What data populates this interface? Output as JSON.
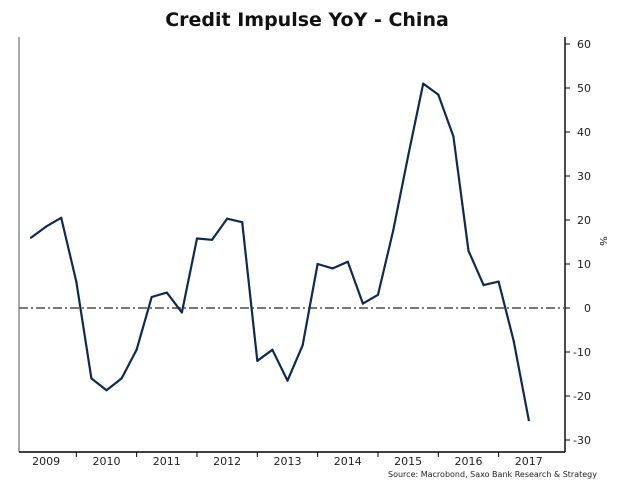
{
  "chart_data": {
    "type": "line",
    "title": "Credit Impulse YoY - China",
    "ylabel": "%",
    "source": "Source: Macrobond, Saxo Bank Research & Strategy",
    "ylim": [
      -30,
      60
    ],
    "yticks": [
      60,
      50,
      40,
      30,
      20,
      10,
      0,
      -10,
      -20,
      -30
    ],
    "xlim": [
      2008.55,
      2017.6
    ],
    "xtick_labels": [
      {
        "label": "2009",
        "x": 2009.0
      },
      {
        "label": "2010",
        "x": 2010.0
      },
      {
        "label": "2011",
        "x": 2011.0
      },
      {
        "label": "2012",
        "x": 2012.0
      },
      {
        "label": "2013",
        "x": 2013.0
      },
      {
        "label": "2014",
        "x": 2014.0
      },
      {
        "label": "2015",
        "x": 2015.0
      },
      {
        "label": "2016",
        "x": 2016.0
      },
      {
        "label": "2017",
        "x": 2017.0
      }
    ],
    "x_boundaries": [
      2009.5,
      2010.5,
      2011.5,
      2012.5,
      2013.5,
      2014.5,
      2015.5,
      2016.5
    ],
    "grid": false,
    "legend": "none",
    "zero_line": {
      "value": 0,
      "style": "dash-dot",
      "color": "#666666"
    },
    "series": [
      {
        "color": "#0f2a4e",
        "x": [
          2008.75,
          2009.0,
          2009.25,
          2009.5,
          2009.75,
          2010.0,
          2010.25,
          2010.5,
          2010.75,
          2011.0,
          2011.25,
          2011.5,
          2011.75,
          2012.0,
          2012.25,
          2012.5,
          2012.75,
          2013.0,
          2013.25,
          2013.5,
          2013.75,
          2014.0,
          2014.25,
          2014.5,
          2014.75,
          2015.0,
          2015.25,
          2015.5,
          2015.75,
          2016.0,
          2016.25,
          2016.5,
          2016.75,
          2017.0
        ],
        "values": [
          16,
          18.5,
          20.5,
          6,
          -16,
          -18.7,
          -16,
          -9.5,
          2.5,
          3.5,
          -1,
          15.8,
          15.5,
          20.3,
          19.5,
          -12,
          -9.5,
          -16.5,
          -8.5,
          10,
          9,
          10.5,
          1,
          3,
          17.5,
          34.5,
          51,
          48.5,
          39,
          13,
          5.2,
          6,
          -7.5,
          -25.5
        ]
      }
    ]
  }
}
